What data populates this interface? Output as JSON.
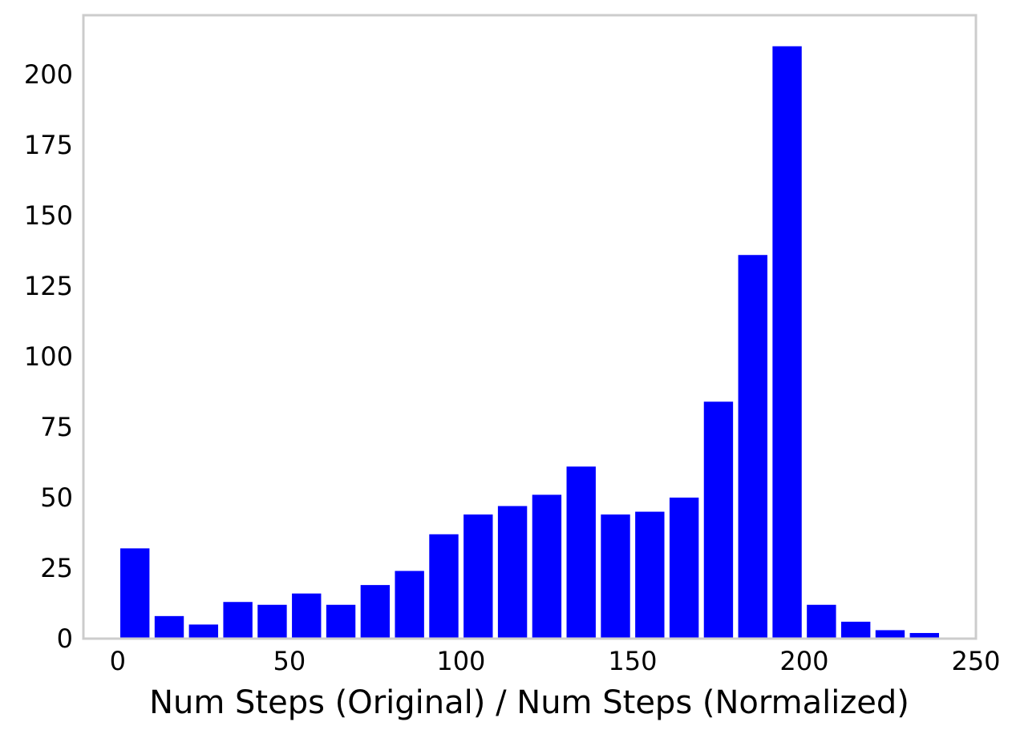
{
  "chart_data": {
    "type": "bar",
    "title": "",
    "xlabel": "Num Steps (Original) / Num Steps (Normalized)",
    "ylabel": "",
    "xlim": [
      -10,
      250
    ],
    "ylim": [
      0,
      221
    ],
    "grid": false,
    "bar_color": "#0000ff",
    "frame_color": "#cccccc",
    "x_ticks": [
      0,
      50,
      100,
      150,
      200,
      250
    ],
    "x_tick_labels": [
      "0",
      "50",
      "100",
      "150",
      "200",
      "250"
    ],
    "y_ticks": [
      0,
      25,
      50,
      75,
      100,
      125,
      150,
      175,
      200
    ],
    "y_tick_labels": [
      "0",
      "25",
      "50",
      "75",
      "100",
      "125",
      "150",
      "175",
      "200"
    ],
    "bin_width": 10,
    "bins": [
      {
        "x0": 0,
        "x1": 10,
        "value": 32
      },
      {
        "x0": 10,
        "x1": 20,
        "value": 8
      },
      {
        "x0": 20,
        "x1": 30,
        "value": 5
      },
      {
        "x0": 30,
        "x1": 40,
        "value": 13
      },
      {
        "x0": 40,
        "x1": 50,
        "value": 12
      },
      {
        "x0": 50,
        "x1": 60,
        "value": 16
      },
      {
        "x0": 60,
        "x1": 70,
        "value": 12
      },
      {
        "x0": 70,
        "x1": 80,
        "value": 19
      },
      {
        "x0": 80,
        "x1": 90,
        "value": 24
      },
      {
        "x0": 90,
        "x1": 100,
        "value": 37
      },
      {
        "x0": 100,
        "x1": 110,
        "value": 44
      },
      {
        "x0": 110,
        "x1": 120,
        "value": 47
      },
      {
        "x0": 120,
        "x1": 130,
        "value": 51
      },
      {
        "x0": 130,
        "x1": 140,
        "value": 61
      },
      {
        "x0": 140,
        "x1": 150,
        "value": 44
      },
      {
        "x0": 150,
        "x1": 160,
        "value": 45
      },
      {
        "x0": 160,
        "x1": 170,
        "value": 50
      },
      {
        "x0": 170,
        "x1": 180,
        "value": 84
      },
      {
        "x0": 180,
        "x1": 190,
        "value": 136
      },
      {
        "x0": 190,
        "x1": 200,
        "value": 210
      },
      {
        "x0": 200,
        "x1": 210,
        "value": 12
      },
      {
        "x0": 210,
        "x1": 220,
        "value": 6
      },
      {
        "x0": 220,
        "x1": 230,
        "value": 3
      },
      {
        "x0": 230,
        "x1": 240,
        "value": 2
      }
    ]
  }
}
